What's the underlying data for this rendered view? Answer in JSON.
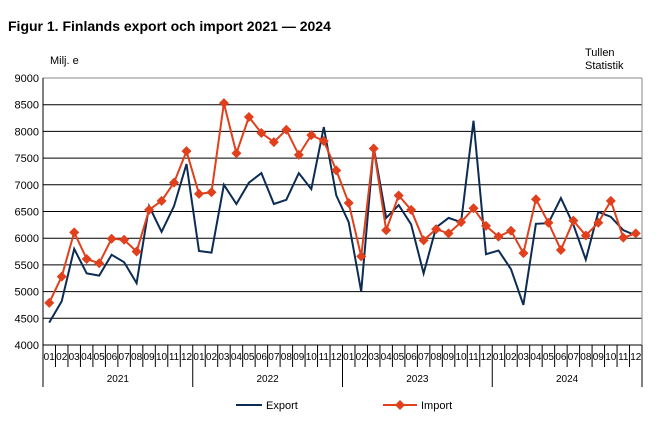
{
  "chart_data": {
    "type": "line",
    "title": "Figur 1. Finlands export och import 2021 — 2024",
    "ylabel": "Milj. e",
    "source": "Tullen\nStatistik",
    "source_lines": [
      "Tullen",
      "Statistik"
    ],
    "ylim": [
      4000,
      9000
    ],
    "yticks": [
      4000,
      4500,
      5000,
      5500,
      6000,
      6500,
      7000,
      7500,
      8000,
      8500,
      9000
    ],
    "grid": true,
    "legend": "bottom",
    "years": [
      "2021",
      "2022",
      "2023",
      "2024"
    ],
    "months": [
      "01",
      "02",
      "03",
      "04",
      "05",
      "06",
      "07",
      "08",
      "09",
      "10",
      "11",
      "12"
    ],
    "series": [
      {
        "name": "Export",
        "color": "#0c2c54",
        "marker": "none",
        "values": [
          4420,
          4820,
          5800,
          5340,
          5300,
          5690,
          5550,
          5160,
          6600,
          6120,
          6600,
          7390,
          5760,
          5730,
          7000,
          6640,
          7040,
          7220,
          6640,
          6720,
          7220,
          6920,
          8080,
          6800,
          6300,
          5000,
          7700,
          6380,
          6620,
          6260,
          5340,
          6200,
          6380,
          6300,
          8200,
          5700,
          5770,
          5420,
          4750,
          6270,
          6280,
          6750,
          6250,
          5600,
          6490,
          6400,
          6150,
          6050
        ]
      },
      {
        "name": "Import",
        "color": "#e0401c",
        "marker": "diamond",
        "values": [
          4790,
          5280,
          6110,
          5610,
          5530,
          5990,
          5970,
          5750,
          6530,
          6700,
          7040,
          7630,
          6830,
          6860,
          8530,
          7590,
          8270,
          7970,
          7800,
          8030,
          7560,
          7930,
          7820,
          7270,
          6660,
          5660,
          7680,
          6150,
          6800,
          6530,
          5960,
          6170,
          6090,
          6300,
          6560,
          6230,
          6030,
          6140,
          5720,
          6730,
          6290,
          5780,
          6330,
          6050,
          6290,
          6700,
          6010,
          6090
        ]
      }
    ]
  }
}
